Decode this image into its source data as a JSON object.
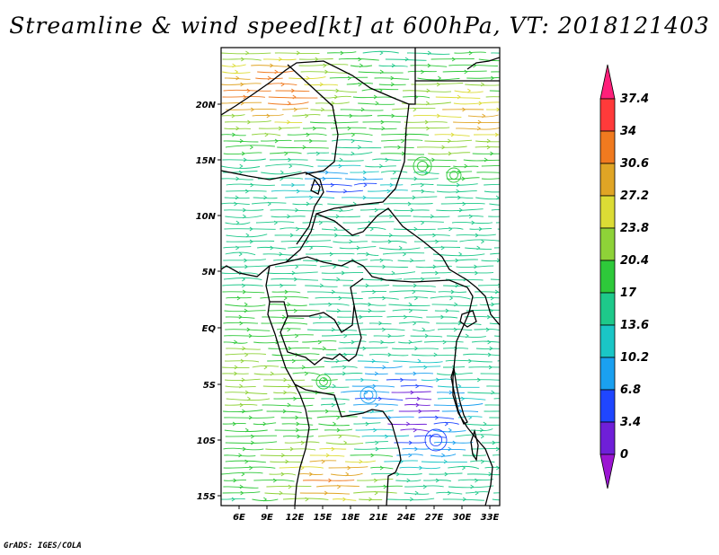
{
  "title": "Streamline & wind speed[kt] at 600hPa, VT: 2018121403",
  "x_ticks": [
    "6E",
    "9E",
    "12E",
    "15E",
    "18E",
    "21E",
    "24E",
    "27E",
    "30E",
    "33E"
  ],
  "y_ticks": [
    "20N",
    "15N",
    "10N",
    "5N",
    "EQ",
    "5S",
    "10S",
    "15S"
  ],
  "colorbar": {
    "levels": [
      "37.4",
      "34",
      "30.6",
      "27.2",
      "23.8",
      "20.4",
      "17",
      "13.6",
      "10.2",
      "6.8",
      "3.4",
      "0"
    ],
    "colors": [
      "#ff1f7a",
      "#ff3a3a",
      "#f07a1f",
      "#e0a525",
      "#dcdc35",
      "#8ed238",
      "#2ec93a",
      "#1ec98a",
      "#1ac6c6",
      "#1aa0f0",
      "#1f46ff",
      "#6f1fd8",
      "#9b15d2"
    ]
  },
  "credit": "GrADS: IGES/COLA"
}
